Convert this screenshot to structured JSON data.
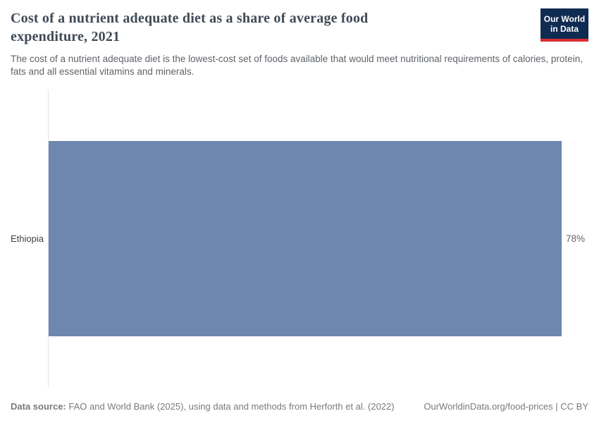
{
  "header": {
    "title": "Cost of a nutrient adequate diet as a share of average food expenditure, 2021",
    "subtitle": "The cost of a nutrient adequate diet is the lowest-cost set of foods available that would meet nutritional requirements of calories, protein, fats and all essential vitamins and minerals.",
    "logo": {
      "line1": "Our World",
      "line2": "in Data"
    }
  },
  "chart_data": {
    "type": "bar",
    "orientation": "horizontal",
    "title": "Cost of a nutrient adequate diet as a share of average food expenditure, 2021",
    "categories": [
      "Ethiopia"
    ],
    "values": [
      78
    ],
    "value_labels": [
      "78%"
    ],
    "unit": "%",
    "xlim": [
      0,
      78
    ],
    "grid": false,
    "legend": false,
    "bar_color": "#6e87ae",
    "axis_line_color": "#e4e4e4"
  },
  "footer": {
    "datasource_label": "Data source:",
    "datasource_rest": " FAO and World Bank (2025), using data and methods from Herforth et al. (2022)",
    "link_text": "OurWorldinData.org/food-prices | CC BY"
  },
  "colors": {
    "title": "#3f4a55",
    "subtitle": "#5f6368",
    "footer": "#7a7a7a",
    "logo_background": "#0f2b52",
    "logo_stripe": "#dc2e32",
    "bar": "#6e87ae"
  }
}
